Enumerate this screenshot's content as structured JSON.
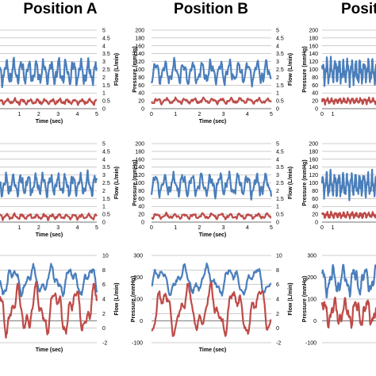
{
  "headers": [
    "Position A",
    "Position B",
    "Positi"
  ],
  "colors": {
    "pressure": "#4A7EBB",
    "flow": "#BE4B48",
    "grid": "#9a9a9a",
    "frame": "#bfbfbf"
  },
  "chart_data": [
    {
      "id": "A1",
      "type": "line",
      "xlabel": "Time (sec)",
      "ylabel_left": "",
      "ylabel_right": "Flow (L/min)",
      "x_range": [
        0,
        5
      ],
      "x_ticks": [
        "1",
        "2",
        "3",
        "4",
        "5"
      ],
      "y_left_range": [
        0,
        200
      ],
      "y_right_range": [
        0,
        5
      ],
      "y_right_ticks": [
        "0",
        "0.5",
        "1",
        "1.5",
        "2",
        "2.5",
        "3",
        "3.5",
        "4",
        "4.5",
        "5"
      ],
      "series": [
        {
          "axis": "left",
          "base": 93,
          "amp": 22,
          "freq": 2.6,
          "noise": 6,
          "seed": 11
        },
        {
          "axis": "right",
          "base": 0.45,
          "amp": 0.12,
          "freq": 2.6,
          "noise": 0.05,
          "seed": 12
        }
      ]
    },
    {
      "id": "B1",
      "type": "line",
      "xlabel": "Time (sec)",
      "ylabel_left": "Pressure (mmHg)",
      "ylabel_right": "Flow (L/min)",
      "x_range": [
        0,
        5
      ],
      "x_ticks": [
        "0",
        "1",
        "2",
        "3",
        "4",
        "5"
      ],
      "y_left_range": [
        0,
        200
      ],
      "y_left_ticks": [
        "0",
        "20",
        "40",
        "60",
        "80",
        "100",
        "120",
        "140",
        "160",
        "180",
        "200"
      ],
      "y_right_range": [
        0,
        5
      ],
      "y_right_ticks": [
        "0",
        "0.5",
        "1",
        "1.5",
        "2",
        "2.5",
        "3",
        "3.5",
        "4",
        "4.5",
        "5"
      ],
      "series": [
        {
          "axis": "left",
          "base": 93,
          "amp": 20,
          "freq": 2.6,
          "noise": 6,
          "seed": 21
        },
        {
          "axis": "right",
          "base": 0.5,
          "amp": 0.12,
          "freq": 2.6,
          "noise": 0.05,
          "seed": 22
        }
      ]
    },
    {
      "id": "C1",
      "type": "line",
      "xlabel": "",
      "ylabel_left": "Pressure (mmHg)",
      "ylabel_right": "",
      "x_range": [
        0,
        5
      ],
      "x_ticks": [
        "0",
        "1"
      ],
      "y_left_range": [
        0,
        200
      ],
      "y_left_ticks": [
        "0",
        "20",
        "40",
        "60",
        "80",
        "100",
        "120",
        "140",
        "160",
        "180",
        "200"
      ],
      "series": [
        {
          "axis": "left",
          "base": 95,
          "amp": 22,
          "freq": 2.6,
          "noise": 6,
          "seed": 31
        },
        {
          "axis": "left",
          "base": 20,
          "amp": 5,
          "freq": 2.6,
          "noise": 2,
          "seed": 32
        }
      ]
    },
    {
      "id": "A2",
      "type": "line",
      "xlabel": "Time (sec)",
      "ylabel_left": "",
      "ylabel_right": "Flow (L/min)",
      "x_range": [
        0,
        5
      ],
      "x_ticks": [
        "1",
        "2",
        "3",
        "4",
        "5"
      ],
      "y_left_range": [
        0,
        200
      ],
      "y_right_range": [
        0,
        5
      ],
      "y_right_ticks": [
        "0",
        "0.5",
        "1",
        "1.5",
        "2",
        "2.5",
        "3",
        "3.5",
        "4",
        "4.5",
        "5"
      ],
      "series": [
        {
          "axis": "left",
          "base": 95,
          "amp": 20,
          "freq": 2.6,
          "noise": 6,
          "seed": 41
        },
        {
          "axis": "right",
          "base": 0.35,
          "amp": 0.12,
          "freq": 2.6,
          "noise": 0.05,
          "seed": 42
        }
      ]
    },
    {
      "id": "B2",
      "type": "line",
      "xlabel": "Time (sec)",
      "ylabel_left": "Pressure (mmHg)",
      "ylabel_right": "Flow (L/min)",
      "x_range": [
        0,
        5
      ],
      "x_ticks": [
        "0",
        "1",
        "2",
        "3",
        "4",
        "5"
      ],
      "y_left_range": [
        0,
        200
      ],
      "y_left_ticks": [
        "0",
        "20",
        "40",
        "60",
        "80",
        "100",
        "120",
        "140",
        "160",
        "180",
        "200"
      ],
      "y_right_range": [
        0,
        5
      ],
      "y_right_ticks": [
        "0",
        "0.5",
        "1",
        "1.5",
        "2",
        "2.5",
        "3",
        "3.5",
        "4",
        "4.5",
        "5"
      ],
      "series": [
        {
          "axis": "left",
          "base": 95,
          "amp": 20,
          "freq": 2.6,
          "noise": 6,
          "seed": 51
        },
        {
          "axis": "right",
          "base": 0.38,
          "amp": 0.12,
          "freq": 2.6,
          "noise": 0.05,
          "seed": 52
        }
      ]
    },
    {
      "id": "C2",
      "type": "line",
      "xlabel": "",
      "ylabel_left": "Pressure (mmHg)",
      "ylabel_right": "",
      "x_range": [
        0,
        5
      ],
      "x_ticks": [
        "0",
        "1"
      ],
      "y_left_range": [
        0,
        200
      ],
      "y_left_ticks": [
        "0",
        "20",
        "40",
        "60",
        "80",
        "100",
        "120",
        "140",
        "160",
        "180",
        "200"
      ],
      "series": [
        {
          "axis": "left",
          "base": 95,
          "amp": 22,
          "freq": 2.6,
          "noise": 6,
          "seed": 61
        },
        {
          "axis": "left",
          "base": 18,
          "amp": 5,
          "freq": 2.6,
          "noise": 2,
          "seed": 62
        }
      ]
    },
    {
      "id": "A3",
      "type": "line",
      "xlabel": "Time (sec)",
      "ylabel_left": "",
      "ylabel_right": "Flow (L/min)",
      "x_range": [
        0,
        5
      ],
      "x_ticks": [],
      "y_left_range": [
        -100,
        300
      ],
      "y_right_range": [
        -2,
        10
      ],
      "y_right_ticks": [
        "-2",
        "0",
        "2",
        "4",
        "6",
        "8",
        "10"
      ],
      "series": [
        {
          "axis": "left",
          "base": 185,
          "amp": 45,
          "freq": 1.0,
          "noise": 8,
          "seed": 71
        },
        {
          "axis": "right",
          "base": 2.5,
          "amp": 2.3,
          "freq": 1.0,
          "noise": 0.3,
          "seed": 72
        }
      ]
    },
    {
      "id": "B3",
      "type": "line",
      "xlabel": "Time (sec)",
      "ylabel_left": "Pressure (mmHg)",
      "ylabel_right": "Flow (L/min)",
      "x_range": [
        0,
        5
      ],
      "x_ticks": [],
      "y_left_range": [
        -100,
        300
      ],
      "y_left_ticks": [
        "-100",
        "0",
        "100",
        "200",
        "300"
      ],
      "y_right_range": [
        -2,
        10
      ],
      "y_right_ticks": [
        "-2",
        "0",
        "2",
        "4",
        "6",
        "8",
        "10"
      ],
      "series": [
        {
          "axis": "left",
          "base": 185,
          "amp": 45,
          "freq": 1.0,
          "noise": 8,
          "seed": 81
        },
        {
          "axis": "right",
          "base": 2.5,
          "amp": 2.3,
          "freq": 1.0,
          "noise": 0.3,
          "seed": 82
        }
      ]
    },
    {
      "id": "C3",
      "type": "line",
      "xlabel": "",
      "ylabel_left": "Pressure (mmHg)",
      "ylabel_right": "",
      "x_range": [
        0,
        5
      ],
      "x_ticks": [],
      "y_left_range": [
        -100,
        300
      ],
      "y_left_ticks": [
        "-100",
        "0",
        "100",
        "200",
        "300"
      ],
      "series": [
        {
          "axis": "left",
          "base": 185,
          "amp": 45,
          "freq": 1.0,
          "noise": 8,
          "seed": 91
        },
        {
          "axis": "left",
          "base": 40,
          "amp": 45,
          "freq": 1.0,
          "noise": 8,
          "seed": 92
        }
      ]
    }
  ]
}
